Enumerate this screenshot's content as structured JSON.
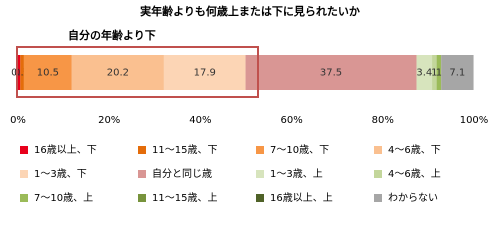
{
  "chart_data": {
    "type": "stacked_barh",
    "title": "実年齢よりも何歳上または下に見られたいか",
    "annotation": "自分の年齢より下",
    "series": [
      {
        "name": "16歳以上、下",
        "color": "#e8001c",
        "values": [
          0.5
        ]
      },
      {
        "name": "11～15歳、下",
        "color": "#e46c0a",
        "values": [
          0.8
        ]
      },
      {
        "name": "7～10歳、下",
        "color": "#f79646",
        "values": [
          10.5
        ]
      },
      {
        "name": "4～6歳、下",
        "color": "#fac090",
        "values": [
          20.2
        ]
      },
      {
        "name": "1～3歳、下",
        "color": "#fcd5b5",
        "values": [
          17.9
        ]
      },
      {
        "name": "自分と同じ歳",
        "color": "#d99694",
        "values": [
          37.5
        ]
      },
      {
        "name": "1～3歳、上",
        "color": "#d7e4bd",
        "values": [
          3.4
        ]
      },
      {
        "name": "4～6歳、上",
        "color": "#c3d69b",
        "values": [
          1.0
        ]
      },
      {
        "name": "7～10歳、上",
        "color": "#9bbb59",
        "values": [
          1.0
        ]
      },
      {
        "name": "11～15歳、上",
        "color": "#77933c",
        "values": [
          0
        ]
      },
      {
        "name": "16歳以上、上",
        "color": "#4f6228",
        "values": [
          0
        ]
      },
      {
        "name": "わからない",
        "color": "#a6a6a6",
        "values": [
          7.1
        ]
      }
    ],
    "xlim": [
      0,
      100
    ],
    "xticks": [
      {
        "value": 0,
        "label": "0%"
      },
      {
        "value": 20,
        "label": "20%"
      },
      {
        "value": 40,
        "label": "40%"
      },
      {
        "value": 60,
        "label": "60%"
      },
      {
        "value": 80,
        "label": "80%"
      },
      {
        "value": 100,
        "label": "100%"
      }
    ]
  }
}
